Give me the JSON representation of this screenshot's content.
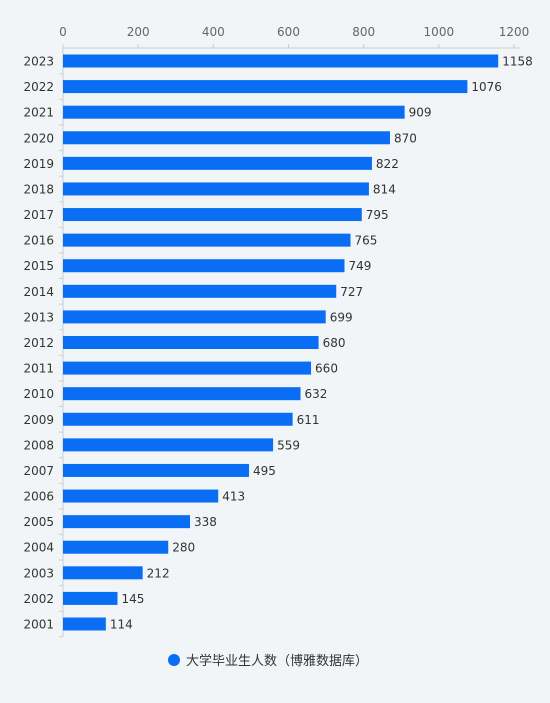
{
  "chart_data": {
    "type": "bar",
    "orientation": "horizontal",
    "categories": [
      "2023",
      "2022",
      "2021",
      "2020",
      "2019",
      "2018",
      "2017",
      "2016",
      "2015",
      "2014",
      "2013",
      "2012",
      "2011",
      "2010",
      "2009",
      "2008",
      "2007",
      "2006",
      "2005",
      "2004",
      "2003",
      "2002",
      "2001"
    ],
    "series": [
      {
        "name": "大学毕业生人数（博雅数据库）",
        "values": [
          1158,
          1076,
          909,
          870,
          822,
          814,
          795,
          765,
          749,
          727,
          699,
          680,
          660,
          632,
          611,
          559,
          495,
          413,
          338,
          280,
          212,
          145,
          114
        ]
      }
    ],
    "xlim": [
      0,
      1200
    ],
    "x_ticks": [
      "0",
      "200",
      "400",
      "600",
      "800",
      "1000",
      "1200"
    ],
    "x_axis_position": "top",
    "grid": false,
    "legend_position": "bottom-center",
    "bar_color": "#0a6ef5"
  }
}
